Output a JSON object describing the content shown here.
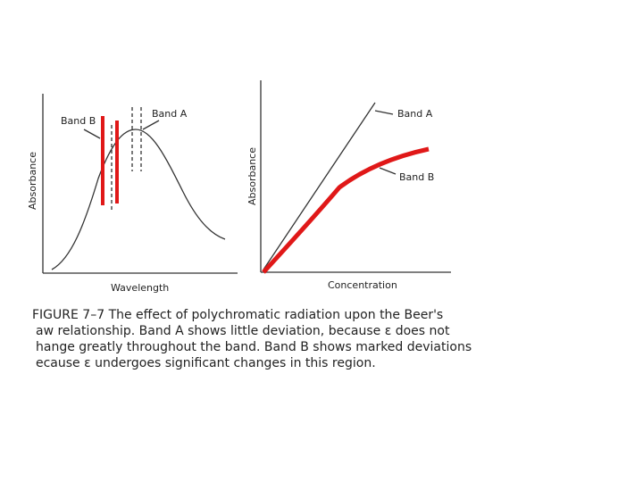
{
  "left_panel": {
    "band_b_label": "Band B",
    "band_a_label": "Band A",
    "y_axis_label": "Absorbance",
    "x_axis_label": "Wavelength"
  },
  "right_panel": {
    "y_axis_label": "Absorbance",
    "band_a_label": "Band A",
    "band_b_label": "Band B",
    "x_axis_label": "Concentration"
  },
  "caption": {
    "lines": [
      "FIGURE 7–7   The effect of polychromatic radiation upon the Beer's",
      "aw relationship. Band A shows little deviation, because ε does not",
      "hange greatly throughout the band. Band B shows marked deviations",
      "ecause ε undergoes significant changes in this region."
    ]
  }
}
